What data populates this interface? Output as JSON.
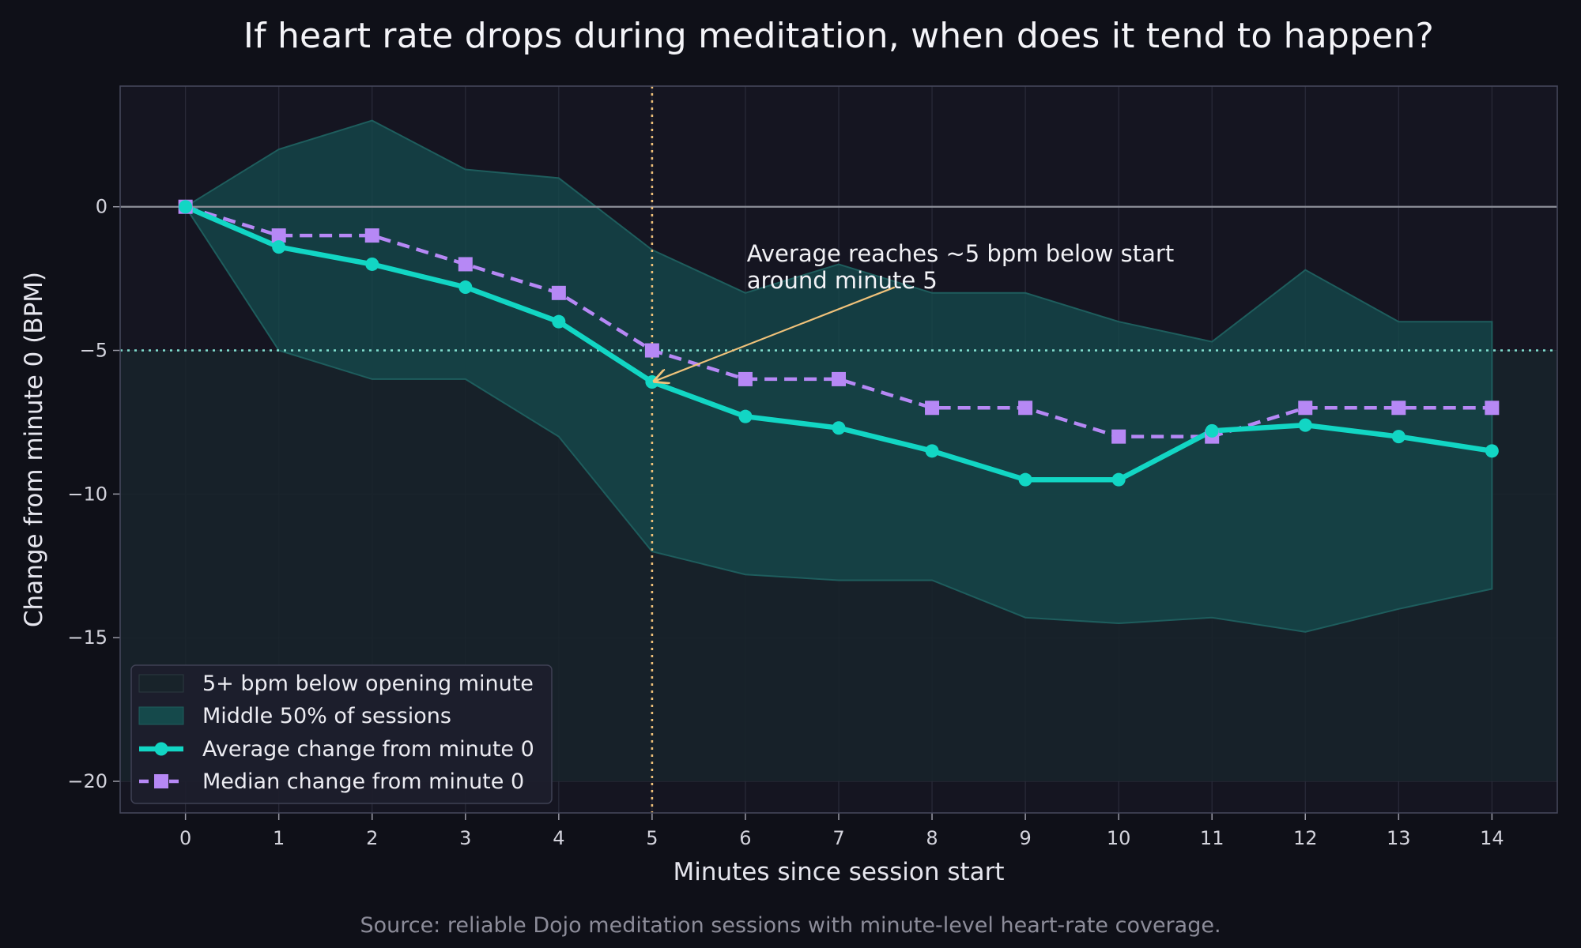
{
  "source_note": "Source: reliable Dojo meditation sessions with minute-level heart-rate coverage.",
  "colors": {
    "background": "#0f1018",
    "plot_background": "#151521",
    "average": "#12d6c4",
    "median": "#b688f5",
    "band": "#15494b",
    "threshold_region": "#18232a",
    "annotation": "#f0c27a",
    "zero_line": "#8d8f99"
  },
  "chart_data": {
    "type": "line",
    "title": "If heart rate drops during meditation, when does it tend to happen?",
    "xlabel": "Minutes since session start",
    "ylabel": "Change from minute 0 (BPM)",
    "x": [
      0,
      1,
      2,
      3,
      4,
      5,
      6,
      7,
      8,
      9,
      10,
      11,
      12,
      13,
      14
    ],
    "xlim": [
      -0.7,
      14.7
    ],
    "ylim": [
      -21.1,
      4.2
    ],
    "xticks": [
      0,
      1,
      2,
      3,
      4,
      5,
      6,
      7,
      8,
      9,
      10,
      11,
      12,
      13,
      14
    ],
    "yticks": [
      0,
      -5,
      -10,
      -15,
      -20
    ],
    "ytick_labels": [
      "0",
      "−5",
      "−10",
      "−15",
      "−20"
    ],
    "grid": true,
    "legend_position": "lower-left",
    "threshold_y": -5,
    "threshold_region": [
      -20,
      -5
    ],
    "marker_x": 5,
    "series": [
      {
        "name": "Average change from minute 0",
        "style": "solid-circle",
        "values": [
          0,
          -1.4,
          -2.0,
          -2.8,
          -4.0,
          -6.1,
          -7.3,
          -7.7,
          -8.5,
          -9.5,
          -9.5,
          -7.8,
          -7.6,
          -8.0,
          -8.5
        ]
      },
      {
        "name": "Median change from minute 0",
        "style": "dashed-square",
        "values": [
          0,
          -1,
          -1,
          -2,
          -3,
          -5,
          -6,
          -6,
          -7,
          -7,
          -8,
          -8,
          -7,
          -7,
          -7
        ]
      }
    ],
    "band": {
      "name": "Middle 50% of sessions",
      "upper": [
        0,
        2.0,
        3.0,
        1.3,
        1.0,
        -1.5,
        -3.0,
        -2.0,
        -3.0,
        -3.0,
        -4.0,
        -4.7,
        -2.2,
        -4.0,
        -4.0
      ],
      "lower": [
        0,
        -5.0,
        -6.0,
        -6.0,
        -8.0,
        -12.0,
        -12.8,
        -13.0,
        -13.0,
        -14.3,
        -14.5,
        -14.3,
        -14.8,
        -14.0,
        -13.3
      ]
    },
    "threshold_region_name": "5+ bpm below opening minute",
    "annotation": {
      "lines": [
        "Average reaches ~5 bpm below start",
        "around minute 5"
      ],
      "target": [
        5,
        -6.1
      ],
      "text_anchor": [
        6.1,
        -1.9
      ],
      "arrow_start": [
        7.6,
        -2.8
      ]
    }
  }
}
